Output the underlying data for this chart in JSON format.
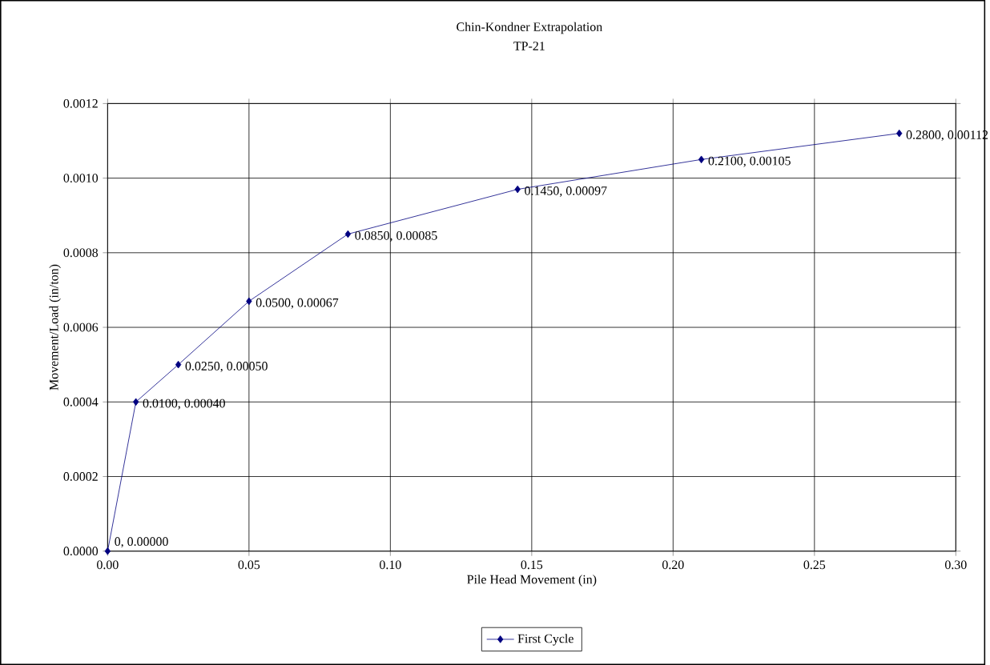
{
  "chart_data": {
    "type": "line",
    "title": "Chin-Kondner Extrapolation",
    "subtitle": "TP-21",
    "xlabel": "Pile Head Movement (in)",
    "ylabel": "Movement/Load (in/ton)",
    "x": [
      0,
      0.01,
      0.025,
      0.05,
      0.085,
      0.145,
      0.21,
      0.28
    ],
    "series": [
      {
        "name": "First Cycle",
        "color": "#000080",
        "values": [
          0,
          0.0004,
          0.0005,
          0.00067,
          0.00085,
          0.00097,
          0.00105,
          0.00112
        ],
        "value_labels": [
          "0, 0.00000",
          "0.0100, 0.00040",
          "0.0250, 0.00050",
          "0.0500, 0.00067",
          "0.0850, 0.00085",
          "0.1450, 0.00097",
          "0.2100, 0.00105",
          "0.2800, 0.00112"
        ]
      }
    ],
    "xlim": [
      0,
      0.3
    ],
    "ylim": [
      0,
      0.0012
    ],
    "xticks": [
      {
        "value": 0,
        "label": "0.00"
      },
      {
        "value": 0.05,
        "label": "0.05"
      },
      {
        "value": 0.1,
        "label": "0.10"
      },
      {
        "value": 0.15,
        "label": "0.15"
      },
      {
        "value": 0.2,
        "label": "0.20"
      },
      {
        "value": 0.25,
        "label": "0.25"
      },
      {
        "value": 0.3,
        "label": "0.30"
      }
    ],
    "yticks": [
      {
        "value": 0,
        "label": "0.0000"
      },
      {
        "value": 0.0002,
        "label": "0.0002"
      },
      {
        "value": 0.0004,
        "label": "0.0004"
      },
      {
        "value": 0.0006,
        "label": "0.0006"
      },
      {
        "value": 0.0008,
        "label": "0.0008"
      },
      {
        "value": 0.001,
        "label": "0.0010"
      },
      {
        "value": 0.0012,
        "label": "0.0012"
      }
    ],
    "grid": true,
    "legend": "bottom",
    "marker": "diamond",
    "line_style": "solid"
  }
}
